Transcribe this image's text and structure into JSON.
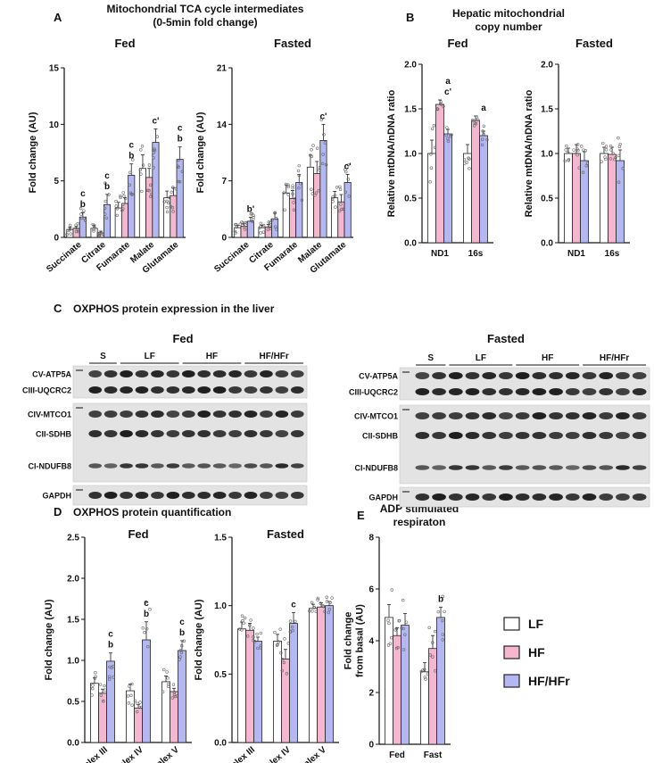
{
  "legend": {
    "items": [
      {
        "name": "LF",
        "color": "#ffffff"
      },
      {
        "name": "HF",
        "color": "#f4b7cf"
      },
      {
        "name": "HF/HFr",
        "color": "#b3b7f2"
      }
    ]
  },
  "panel_A": {
    "letter": "A",
    "title": [
      "Mitochondrial TCA cycle intermediates",
      "(0-5min fold change)"
    ]
  },
  "panel_B": {
    "letter": "B",
    "title": [
      "Hepatic mitochondrial",
      "copy number"
    ]
  },
  "panel_C": {
    "letter": "C",
    "title": "OXPHOS protein expression in the liver",
    "fed": {
      "title": "Fed",
      "groups": [
        "S",
        "LF",
        "HF",
        "HF/HFr"
      ],
      "bands": [
        "CV-ATP5A",
        "CIII-UQCRC2",
        "CIV-MTCO1",
        "CII-SDHB",
        "CI-NDUFB8",
        "GAPDH"
      ]
    },
    "fasted": {
      "title": "Fasted",
      "groups": [
        "S",
        "LF",
        "HF",
        "HF/HFr"
      ],
      "bands": [
        "CV-ATP5A",
        "CIII-UQCRC2",
        "CIV-MTCO1",
        "CII-SDHB",
        "CI-NDUFB8",
        "GAPDH"
      ]
    }
  },
  "panel_D": {
    "letter": "D",
    "title": "OXPHOS protein quantification"
  },
  "panel_E": {
    "letter": "E",
    "title": [
      "ADP stimulated",
      "respiraton"
    ]
  },
  "chart_data": [
    {
      "id": "A-fed",
      "type": "bar",
      "title": "Fed",
      "ylabel": "Fold change (AU)",
      "ylim": [
        0,
        15
      ],
      "yticks": [
        "0",
        "5",
        "10",
        "15"
      ],
      "categories": [
        "Succinate",
        "Citrate",
        "Fumarate",
        "Malate",
        "Glutamate"
      ],
      "series": [
        {
          "name": "LF",
          "values": [
            0.7,
            0.8,
            2.6,
            6.1,
            3.5
          ],
          "errors": [
            0.2,
            0.3,
            0.5,
            1.2,
            0.6
          ]
        },
        {
          "name": "HF",
          "values": [
            0.8,
            0.4,
            3.0,
            5.3,
            3.7
          ],
          "errors": [
            0.2,
            0.15,
            0.5,
            0.8,
            0.7
          ]
        },
        {
          "name": "HF/HFr",
          "values": [
            1.8,
            2.9,
            5.5,
            8.4,
            6.9
          ],
          "errors": [
            0.4,
            0.9,
            1.0,
            1.2,
            1.1
          ]
        }
      ],
      "annotations": [
        {
          "category": "Succinate",
          "labels": [
            "c",
            "b"
          ]
        },
        {
          "category": "Citrate",
          "labels": [
            "c",
            "b"
          ]
        },
        {
          "category": "Fumarate",
          "labels": [
            "c",
            "b"
          ]
        },
        {
          "category": "Malate",
          "labels": [
            "c'"
          ]
        },
        {
          "category": "Glutamate",
          "labels": [
            "c",
            "b"
          ]
        }
      ]
    },
    {
      "id": "A-fasted",
      "type": "bar",
      "title": "Fasted",
      "ylabel": "Fold change (AU)",
      "ylim": [
        0,
        21
      ],
      "yticks": [
        "0",
        "7",
        "14",
        "21"
      ],
      "categories": [
        "Succinate",
        "Citrate",
        "Fumarate",
        "Malate",
        "Glutamate"
      ],
      "series": [
        {
          "name": "LF",
          "values": [
            1.2,
            1.2,
            5.5,
            8.7,
            4.9
          ],
          "errors": [
            0.3,
            0.3,
            1.0,
            1.5,
            0.8
          ]
        },
        {
          "name": "HF",
          "values": [
            1.4,
            1.3,
            4.8,
            7.9,
            4.4
          ],
          "errors": [
            0.3,
            0.3,
            1.0,
            1.5,
            0.9
          ]
        },
        {
          "name": "HF/HFr",
          "values": [
            2.0,
            2.3,
            6.8,
            12.0,
            6.8
          ],
          "errors": [
            0.5,
            0.7,
            1.0,
            2.0,
            1.0
          ]
        }
      ],
      "annotations": [
        {
          "category": "Succinate",
          "labels": [
            "b'"
          ]
        },
        {
          "category": "Malate",
          "labels": [
            "c'"
          ]
        },
        {
          "category": "Glutamate",
          "labels": [
            "c'"
          ]
        }
      ]
    },
    {
      "id": "B-fed",
      "type": "bar",
      "title": "Fed",
      "ylabel": "Relative mtDNA/nDNA ratio",
      "ylim": [
        0,
        2.0
      ],
      "yticks": [
        "0.0",
        "0.5",
        "1.0",
        "1.5",
        "2.0"
      ],
      "categories": [
        "ND1",
        "16s"
      ],
      "series": [
        {
          "name": "LF",
          "values": [
            1.0,
            1.0
          ],
          "errors": [
            0.15,
            0.1
          ]
        },
        {
          "name": "HF",
          "values": [
            1.55,
            1.37
          ],
          "errors": [
            0.05,
            0.05
          ]
        },
        {
          "name": "HF/HFr",
          "values": [
            1.22,
            1.2
          ],
          "errors": [
            0.05,
            0.05
          ]
        }
      ],
      "annotations": [
        {
          "category": "ND1",
          "labels": [
            "a",
            "c'"
          ]
        },
        {
          "category": "16s",
          "labels": [
            "a"
          ]
        }
      ]
    },
    {
      "id": "B-fasted",
      "type": "bar",
      "title": "Fasted",
      "ylabel": "Relative mtDNA/nDNA ratio",
      "ylim": [
        0,
        2.0
      ],
      "yticks": [
        "0.0",
        "0.5",
        "1.0",
        "1.5",
        "2.0"
      ],
      "categories": [
        "ND1",
        "16s"
      ],
      "series": [
        {
          "name": "LF",
          "values": [
            1.0,
            1.0
          ],
          "errors": [
            0.06,
            0.07
          ]
        },
        {
          "name": "HF",
          "values": [
            1.0,
            0.99
          ],
          "errors": [
            0.1,
            0.08
          ]
        },
        {
          "name": "HF/HFr",
          "values": [
            0.92,
            0.92
          ],
          "errors": [
            0.1,
            0.12
          ]
        }
      ],
      "annotations": []
    },
    {
      "id": "D-fed",
      "type": "bar",
      "title": "Fed",
      "ylabel": "Fold change (AU)",
      "ylim": [
        0,
        2.5
      ],
      "yticks": [
        "0.0",
        "0.5",
        "1.0",
        "1.5",
        "2.0",
        "2.5"
      ],
      "categories": [
        "Complex III",
        "Complex IV",
        "Complex V"
      ],
      "series": [
        {
          "name": "LF",
          "values": [
            0.72,
            0.63,
            0.74
          ],
          "errors": [
            0.07,
            0.08,
            0.07
          ]
        },
        {
          "name": "HF",
          "values": [
            0.6,
            0.42,
            0.62
          ],
          "errors": [
            0.05,
            0.04,
            0.04
          ]
        },
        {
          "name": "HF/HFr",
          "values": [
            0.99,
            1.25,
            1.12
          ],
          "errors": [
            0.1,
            0.22,
            0.12
          ]
        }
      ],
      "annotations": [
        {
          "category": "Complex III",
          "labels": [
            "c",
            "b"
          ]
        },
        {
          "category": "Complex IV",
          "labels": [
            "c",
            "b"
          ]
        },
        {
          "category": "Complex V",
          "labels": [
            "c",
            "b"
          ]
        }
      ]
    },
    {
      "id": "D-fasted",
      "type": "bar",
      "title": "Fasted",
      "ylabel": "Fold change (AU)",
      "ylim": [
        0,
        1.5
      ],
      "yticks": [
        "0.0",
        "0.5",
        "1.0",
        "1.5"
      ],
      "categories": [
        "Complex III",
        "Complex IV",
        "Complex V"
      ],
      "series": [
        {
          "name": "LF",
          "values": [
            0.83,
            0.74,
            0.98
          ],
          "errors": [
            0.05,
            0.05,
            0.03
          ]
        },
        {
          "name": "HF",
          "values": [
            0.82,
            0.61,
            0.99
          ],
          "errors": [
            0.05,
            0.07,
            0.03
          ]
        },
        {
          "name": "HF/HFr",
          "values": [
            0.74,
            0.87,
            1.0
          ],
          "errors": [
            0.03,
            0.08,
            0.03
          ]
        }
      ],
      "annotations": [
        {
          "category": "Complex IV",
          "labels": [
            "c"
          ]
        }
      ]
    },
    {
      "id": "E",
      "type": "bar",
      "title": "",
      "ylabel": "Fold change\nfrom basal (AU)",
      "ylim": [
        0,
        8
      ],
      "yticks": [
        "0",
        "2",
        "4",
        "6",
        "8"
      ],
      "categories": [
        "Fed",
        "Fast"
      ],
      "series": [
        {
          "name": "LF",
          "values": [
            4.9,
            2.8
          ],
          "errors": [
            0.5,
            0.35
          ]
        },
        {
          "name": "HF",
          "values": [
            4.2,
            3.7
          ],
          "errors": [
            0.3,
            0.5
          ]
        },
        {
          "name": "HF/HFr",
          "values": [
            4.6,
            4.9
          ],
          "errors": [
            0.45,
            0.4
          ]
        }
      ],
      "annotations": [
        {
          "category": "Fast",
          "labels": [
            "b"
          ]
        }
      ]
    }
  ]
}
